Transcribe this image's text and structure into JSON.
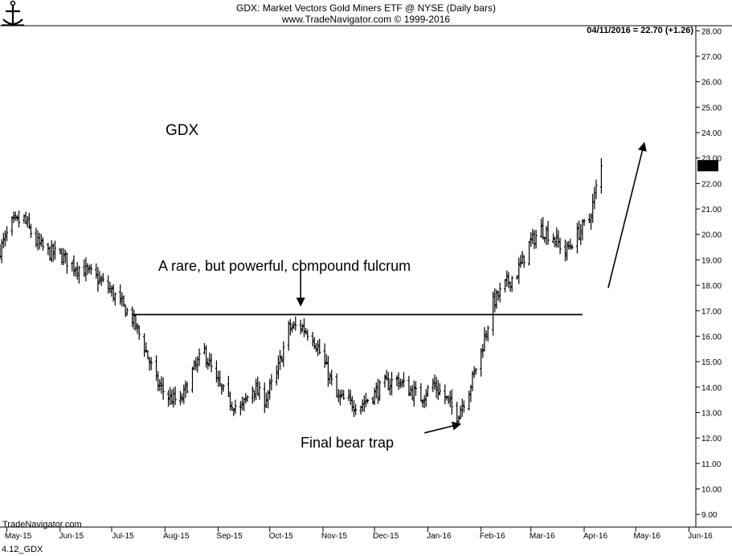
{
  "header": {
    "title": "GDX:  Market Vectors Gold Miners ETF @ NYSE  (Daily bars)",
    "subtitle": "www.TradeNavigator.com © 1999-2016",
    "quote": "04/11/2016 = 22.70 (+1.26)",
    "last_price_label": "22.70"
  },
  "footer": {
    "source": "TradeNavigator.com",
    "file_id": "4.12_GDX"
  },
  "logo": {
    "icon": "trade-navigator-logo"
  },
  "chart_data": {
    "type": "bar",
    "title": "GDX:  Market Vectors Gold Miners ETF @ NYSE  (Daily bars)",
    "x_tick_labels": [
      "May-15",
      "Jun-15",
      "Jul-15",
      "Aug-15",
      "Sep-15",
      "Oct-15",
      "Nov-15",
      "Dec-15",
      "Jan-16",
      "Feb-16",
      "Mar-16",
      "Apr-16",
      "May-16",
      "Jun-16"
    ],
    "y_tick_labels": [
      "9.00",
      "10.00",
      "11.00",
      "12.00",
      "13.00",
      "14.00",
      "15.00",
      "16.00",
      "17.00",
      "18.00",
      "19.00",
      "20.00",
      "21.00",
      "22.00",
      "23.00",
      "24.00",
      "25.00",
      "26.00",
      "27.00",
      "28.00"
    ],
    "ylim": [
      8.5,
      28.2
    ],
    "x_range": [
      "2015-04-27",
      "2016-06-05"
    ],
    "y_axis_side": "right",
    "grid": false,
    "series": [
      {
        "name": "GDX",
        "closes": [
          {
            "x": "2015-04-27",
            "y": 19.4
          },
          {
            "x": "2015-05-04",
            "y": 20.4
          },
          {
            "x": "2015-05-11",
            "y": 20.6
          },
          {
            "x": "2015-05-18",
            "y": 19.7
          },
          {
            "x": "2015-05-25",
            "y": 19.3
          },
          {
            "x": "2015-06-01",
            "y": 19.2
          },
          {
            "x": "2015-06-08",
            "y": 18.8
          },
          {
            "x": "2015-06-15",
            "y": 18.6
          },
          {
            "x": "2015-06-22",
            "y": 18.3
          },
          {
            "x": "2015-06-29",
            "y": 17.9
          },
          {
            "x": "2015-07-06",
            "y": 17.3
          },
          {
            "x": "2015-07-13",
            "y": 16.7
          },
          {
            "x": "2015-07-20",
            "y": 15.6
          },
          {
            "x": "2015-07-27",
            "y": 14.2
          },
          {
            "x": "2015-08-03",
            "y": 13.6
          },
          {
            "x": "2015-08-10",
            "y": 13.4
          },
          {
            "x": "2015-08-17",
            "y": 14.6
          },
          {
            "x": "2015-08-24",
            "y": 15.4
          },
          {
            "x": "2015-08-31",
            "y": 14.2
          },
          {
            "x": "2015-09-07",
            "y": 13.5
          },
          {
            "x": "2015-09-14",
            "y": 13.1
          },
          {
            "x": "2015-09-21",
            "y": 14.0
          },
          {
            "x": "2015-09-28",
            "y": 13.5
          },
          {
            "x": "2015-10-05",
            "y": 14.5
          },
          {
            "x": "2015-10-12",
            "y": 16.3
          },
          {
            "x": "2015-10-19",
            "y": 16.4
          },
          {
            "x": "2015-10-26",
            "y": 16.0
          },
          {
            "x": "2015-11-02",
            "y": 14.9
          },
          {
            "x": "2015-11-09",
            "y": 13.6
          },
          {
            "x": "2015-11-16",
            "y": 13.4
          },
          {
            "x": "2015-11-23",
            "y": 13.3
          },
          {
            "x": "2015-11-30",
            "y": 13.7
          },
          {
            "x": "2015-12-07",
            "y": 14.1
          },
          {
            "x": "2015-12-14",
            "y": 14.3
          },
          {
            "x": "2015-12-21",
            "y": 13.9
          },
          {
            "x": "2015-12-28",
            "y": 13.6
          },
          {
            "x": "2016-01-04",
            "y": 14.1
          },
          {
            "x": "2016-01-11",
            "y": 13.6
          },
          {
            "x": "2016-01-18",
            "y": 12.9
          },
          {
            "x": "2016-01-25",
            "y": 13.9
          },
          {
            "x": "2016-02-01",
            "y": 15.4
          },
          {
            "x": "2016-02-08",
            "y": 17.3
          },
          {
            "x": "2016-02-15",
            "y": 18.0
          },
          {
            "x": "2016-02-22",
            "y": 18.5
          },
          {
            "x": "2016-02-29",
            "y": 19.6
          },
          {
            "x": "2016-03-07",
            "y": 20.2
          },
          {
            "x": "2016-03-14",
            "y": 19.9
          },
          {
            "x": "2016-03-21",
            "y": 19.3
          },
          {
            "x": "2016-03-28",
            "y": 20.0
          },
          {
            "x": "2016-04-04",
            "y": 20.6
          },
          {
            "x": "2016-04-11",
            "y": 22.7
          }
        ]
      }
    ],
    "annotations": [
      {
        "type": "text",
        "label": "GDX"
      },
      {
        "type": "text",
        "label": "A rare, but powerful, compound fulcrum"
      },
      {
        "type": "text",
        "label": "Final bear trap"
      },
      {
        "type": "horizontal_line",
        "y": 16.85,
        "x_from": "2015-07-13",
        "x_to": "2016-03-31"
      },
      {
        "type": "arrow",
        "label": "compound fulcrum pointer",
        "x": "2015-10-19",
        "y_from": 19.0,
        "y_to": 17.2
      },
      {
        "type": "arrow",
        "label": "bear trap pointer",
        "x_from": "2015-12-30",
        "x_to": "2016-01-20",
        "y_from": 12.2,
        "y_to": 12.55
      },
      {
        "type": "arrow",
        "label": "upside projection",
        "x_from": "2016-04-15",
        "x_to": "2016-05-06",
        "y_from": 17.9,
        "y_to": 23.6
      }
    ]
  }
}
